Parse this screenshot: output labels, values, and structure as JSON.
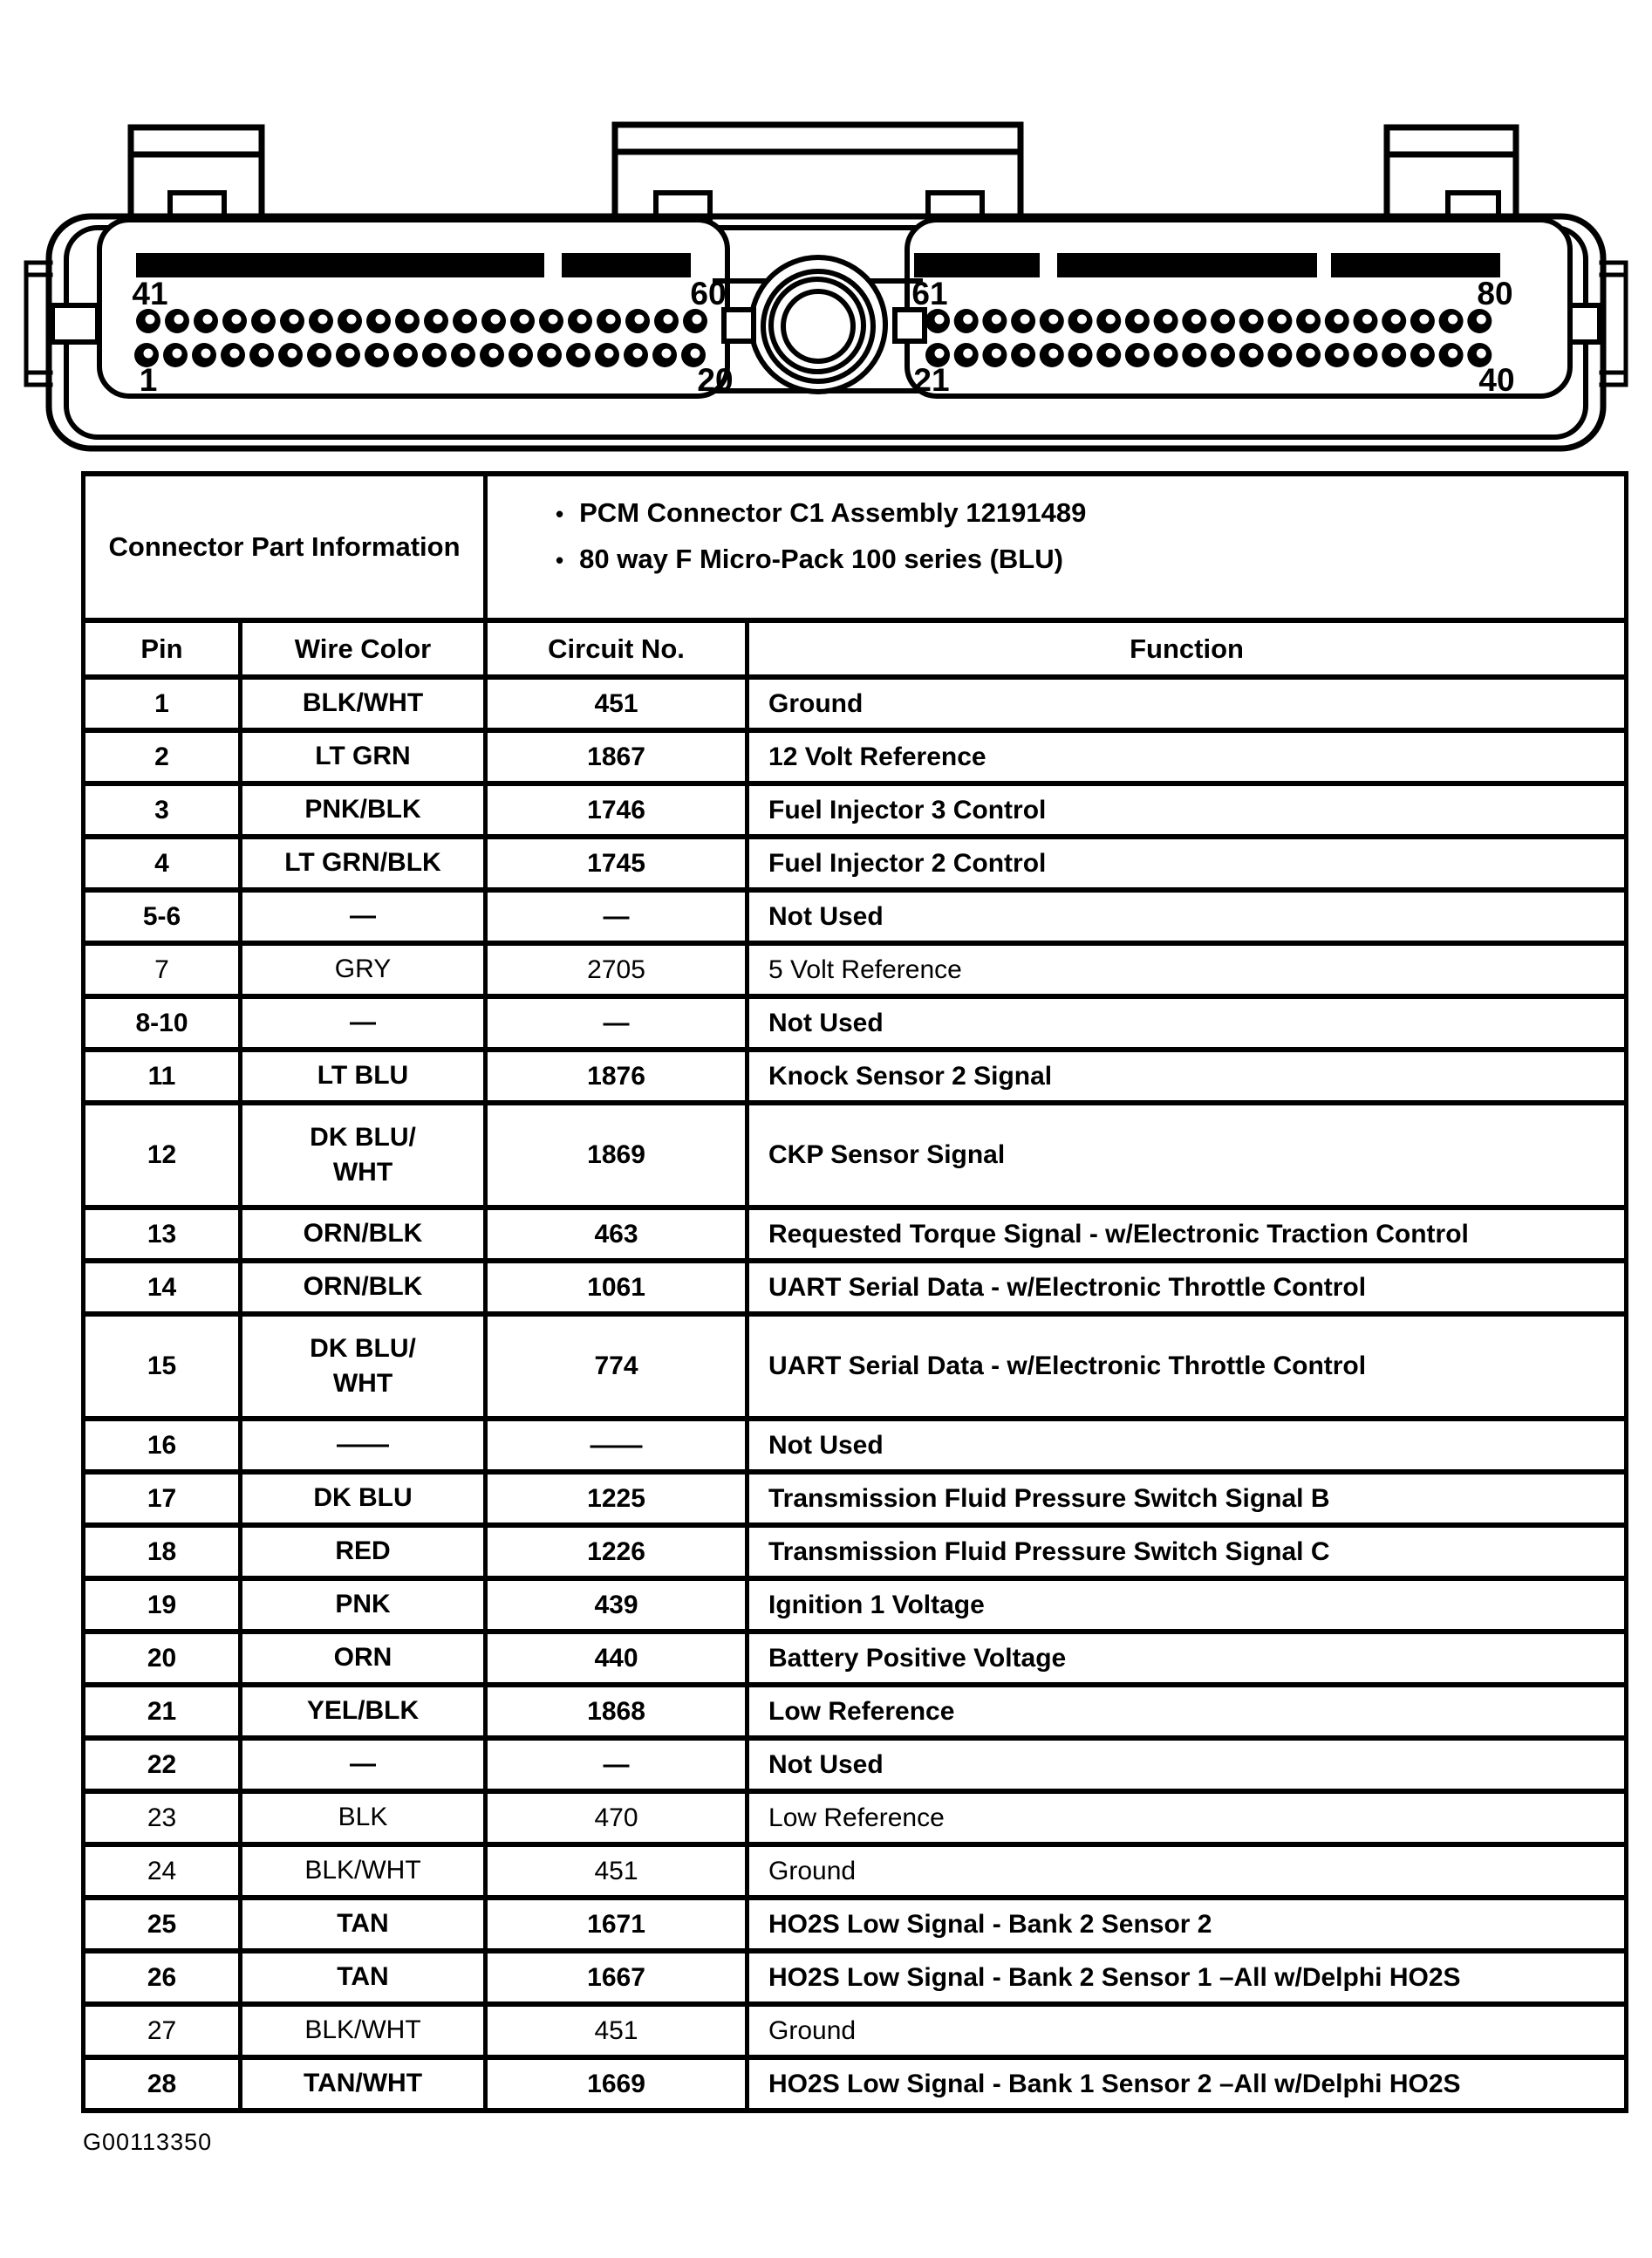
{
  "page": {
    "figure_code": "G00113350",
    "ink": "#000000",
    "paper": "#ffffff"
  },
  "connector": {
    "pins_per_row": 20,
    "bullet_glyph": "•",
    "labels": {
      "left_top_start": "41",
      "left_top_end": "60",
      "left_bottom_start": "1",
      "left_bottom_end": "20",
      "right_top_start": "61",
      "right_top_end": "80",
      "right_bottom_start": "21",
      "right_bottom_end": "40"
    }
  },
  "table": {
    "info_header": "Connector Part Information",
    "bullets": [
      "PCM Connector C1 Assembly 12191489",
      "80 way F Micro-Pack 100 series (BLU)"
    ],
    "columns": [
      "Pin",
      "Wire Color",
      "Circuit No.",
      "Function"
    ],
    "rows": [
      {
        "pin": "1",
        "wire": "BLK/WHT",
        "circuit": "451",
        "function": "Ground"
      },
      {
        "pin": "2",
        "wire": "LT GRN",
        "circuit": "1867",
        "function": "12 Volt Reference"
      },
      {
        "pin": "3",
        "wire": "PNK/BLK",
        "circuit": "1746",
        "function": "Fuel Injector 3 Control"
      },
      {
        "pin": "4",
        "wire": "LT GRN/BLK",
        "circuit": "1745",
        "function": "Fuel Injector 2 Control"
      },
      {
        "pin": "5-6",
        "wire": "—",
        "circuit": "—",
        "function": "Not Used"
      },
      {
        "pin": "7",
        "wire": "GRY",
        "circuit": "2705",
        "function": "5 Volt Reference",
        "light": true
      },
      {
        "pin": "8-10",
        "wire": "—",
        "circuit": "—",
        "function": "Not Used"
      },
      {
        "pin": "11",
        "wire": "LT BLU",
        "circuit": "1876",
        "function": "Knock Sensor 2 Signal"
      },
      {
        "pin": "12",
        "wire": "DK BLU/\nWHT",
        "circuit": "1869",
        "function": "CKP Sensor Signal",
        "tall": true
      },
      {
        "pin": "13",
        "wire": "ORN/BLK",
        "circuit": "463",
        "function": "Requested Torque Signal - w/Electronic Traction Control"
      },
      {
        "pin": "14",
        "wire": "ORN/BLK",
        "circuit": "1061",
        "function": "UART Serial Data - w/Electronic Throttle Control"
      },
      {
        "pin": "15",
        "wire": "DK BLU/\nWHT",
        "circuit": "774",
        "function": "UART Serial Data - w/Electronic Throttle Control",
        "tall": true
      },
      {
        "pin": "16",
        "wire": "——",
        "circuit": "——",
        "function": "Not Used"
      },
      {
        "pin": "17",
        "wire": "DK BLU",
        "circuit": "1225",
        "function": "Transmission Fluid Pressure Switch Signal B"
      },
      {
        "pin": "18",
        "wire": "RED",
        "circuit": "1226",
        "function": "Transmission Fluid Pressure Switch Signal C"
      },
      {
        "pin": "19",
        "wire": "PNK",
        "circuit": "439",
        "function": "Ignition 1 Voltage"
      },
      {
        "pin": "20",
        "wire": "ORN",
        "circuit": "440",
        "function": "Battery Positive Voltage"
      },
      {
        "pin": "21",
        "wire": "YEL/BLK",
        "circuit": "1868",
        "function": "Low Reference"
      },
      {
        "pin": "22",
        "wire": "—",
        "circuit": "—",
        "function": "Not Used"
      },
      {
        "pin": "23",
        "wire": "BLK",
        "circuit": "470",
        "function": "Low Reference",
        "light": true
      },
      {
        "pin": "24",
        "wire": "BLK/WHT",
        "circuit": "451",
        "function": "Ground",
        "light": true
      },
      {
        "pin": "25",
        "wire": "TAN",
        "circuit": "1671",
        "function": "HO2S Low Signal - Bank 2 Sensor 2"
      },
      {
        "pin": "26",
        "wire": "TAN",
        "circuit": "1667",
        "function": "HO2S Low Signal - Bank 2 Sensor 1 –All w/Delphi HO2S"
      },
      {
        "pin": "27",
        "wire": "BLK/WHT",
        "circuit": "451",
        "function": "Ground",
        "light": true
      },
      {
        "pin": "28",
        "wire": "TAN/WHT",
        "circuit": "1669",
        "function": "HO2S Low Signal - Bank 1 Sensor 2 –All w/Delphi HO2S"
      }
    ]
  }
}
